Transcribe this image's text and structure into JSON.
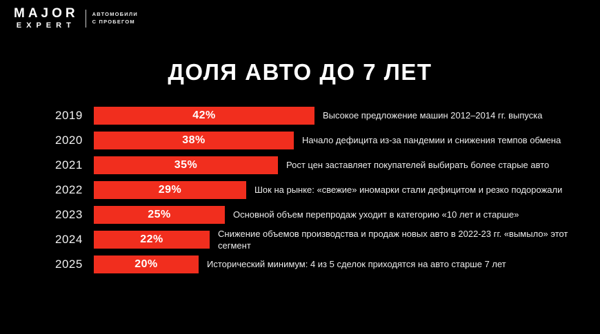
{
  "header": {
    "logo_line1": "MAJOR",
    "logo_line2": "EXPERT",
    "tagline_line1": "АВТОМОБИЛИ",
    "tagline_line2": "С ПРОБЕГОМ"
  },
  "title": "ДОЛЯ АВТО ДО 7 ЛЕТ",
  "colors": {
    "background": "#000000",
    "bar": "#F12E1E",
    "text": "#FFFFFF",
    "annotation": "#ECECEC"
  },
  "chart_data": {
    "type": "bar",
    "orientation": "horizontal",
    "title": "ДОЛЯ АВТО ДО 7 ЛЕТ",
    "categories": [
      "2019",
      "2020",
      "2021",
      "2022",
      "2023",
      "2024",
      "2025"
    ],
    "values": [
      42,
      38,
      35,
      29,
      25,
      22,
      20
    ],
    "unit": "%",
    "value_labels": [
      "42%",
      "38%",
      "35%",
      "29%",
      "25%",
      "22%",
      "20%"
    ],
    "xlim": [
      0,
      45
    ],
    "grid": false,
    "legend": false,
    "annotations": [
      "Высокое предложение машин 2012–2014 гг. выпуска",
      "Начало дефицита из-за пандемии и снижения темпов обмена",
      "Рост цен заставляет покупателей выбирать более старые авто",
      "Шок на рынке: «свежие» иномарки стали дефицитом и резко подорожали",
      "Основной объем перепродаж уходит в категорию «10 лет и старше»",
      "Снижение объемов производства и продаж новых авто в 2022-23 гг. «вымыло» этот сегмент",
      "Исторический минимум: 4 из 5 сделок  приходятся на авто старше 7 лет"
    ]
  }
}
